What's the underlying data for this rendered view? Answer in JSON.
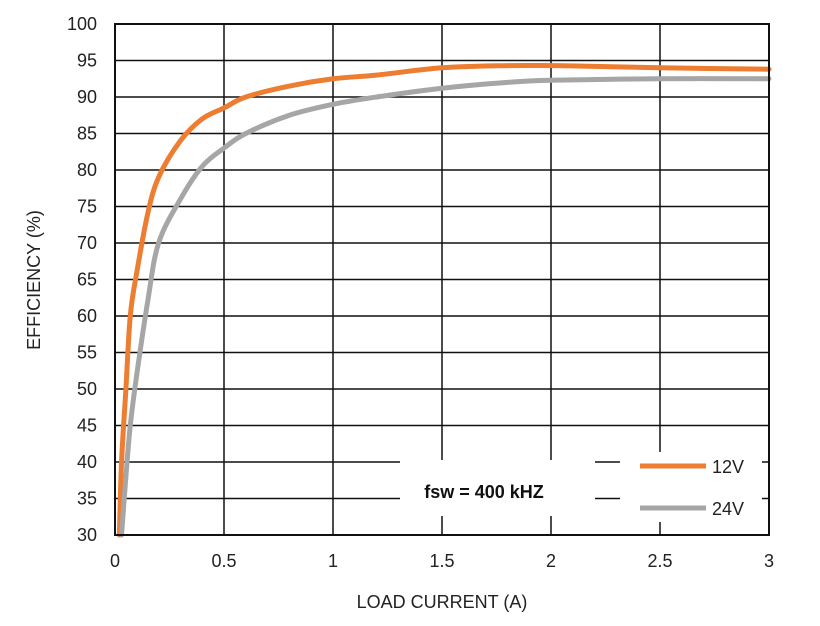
{
  "chart_data": {
    "type": "line",
    "xlabel": "LOAD CURRENT (A)",
    "ylabel": "EFFICIENCY (%)",
    "xlim": [
      0,
      3
    ],
    "ylim": [
      30,
      100
    ],
    "x_ticks": [
      "0",
      "0.5",
      "1",
      "1.5",
      "2",
      "2.5",
      "3"
    ],
    "y_ticks": [
      "30",
      "35",
      "40",
      "45",
      "50",
      "55",
      "60",
      "65",
      "70",
      "75",
      "80",
      "85",
      "90",
      "95",
      "100"
    ],
    "grid": true,
    "legend_position": "bottom-right",
    "annotation": "fsw = 400 kHZ",
    "series": [
      {
        "name": "12V",
        "color": "#ed7d31",
        "points": [
          [
            0.02,
            30
          ],
          [
            0.03,
            40
          ],
          [
            0.05,
            50
          ],
          [
            0.07,
            60
          ],
          [
            0.1,
            66
          ],
          [
            0.15,
            74
          ],
          [
            0.2,
            79
          ],
          [
            0.3,
            84
          ],
          [
            0.4,
            87
          ],
          [
            0.5,
            88.5
          ],
          [
            0.6,
            90
          ],
          [
            0.8,
            91.5
          ],
          [
            1.0,
            92.5
          ],
          [
            1.2,
            93
          ],
          [
            1.5,
            94
          ],
          [
            1.8,
            94.3
          ],
          [
            2.0,
            94.3
          ],
          [
            2.2,
            94.2
          ],
          [
            2.5,
            94
          ],
          [
            3.0,
            93.8
          ]
        ]
      },
      {
        "name": "24V",
        "color": "#a6a6a6",
        "points": [
          [
            0.03,
            30
          ],
          [
            0.05,
            38
          ],
          [
            0.07,
            45
          ],
          [
            0.1,
            52
          ],
          [
            0.15,
            62
          ],
          [
            0.2,
            70
          ],
          [
            0.3,
            76
          ],
          [
            0.4,
            80.5
          ],
          [
            0.5,
            83
          ],
          [
            0.6,
            85
          ],
          [
            0.8,
            87.5
          ],
          [
            1.0,
            89
          ],
          [
            1.2,
            90
          ],
          [
            1.5,
            91.2
          ],
          [
            1.8,
            92
          ],
          [
            2.0,
            92.3
          ],
          [
            2.5,
            92.5
          ],
          [
            3.0,
            92.5
          ]
        ]
      }
    ]
  }
}
